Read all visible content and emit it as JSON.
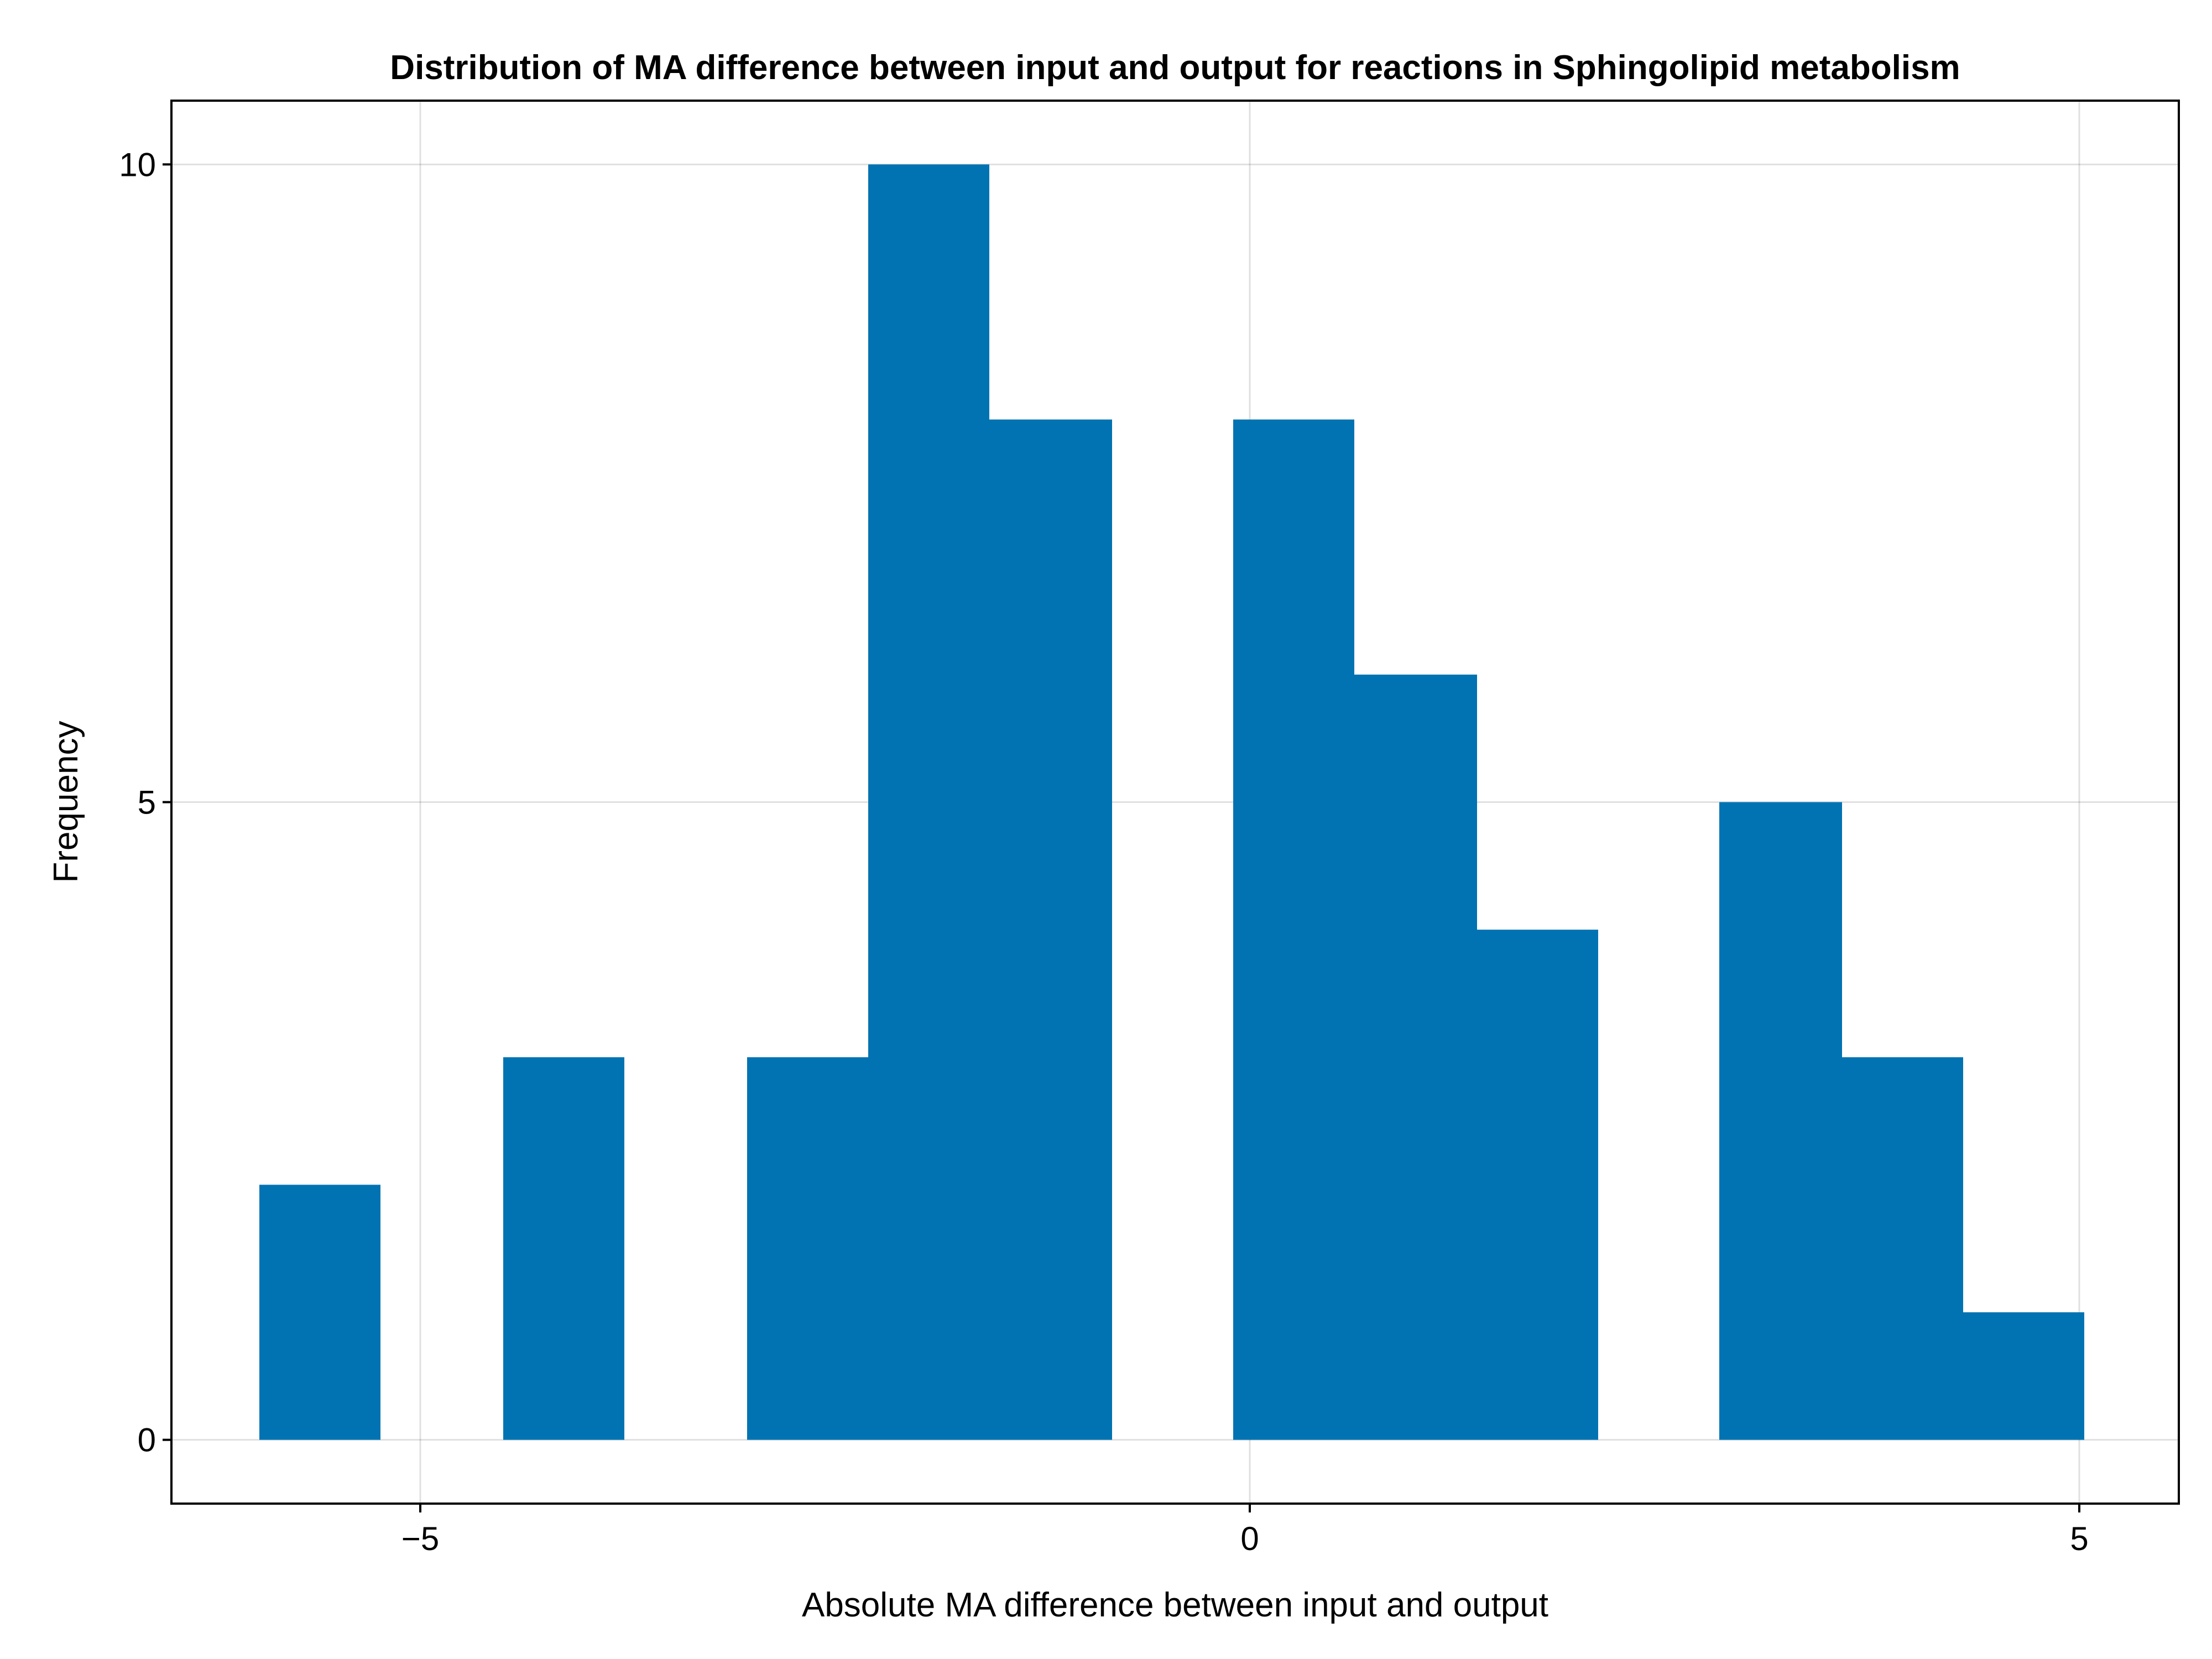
{
  "chart_data": {
    "type": "bar",
    "title": "Distribution of MA difference between input and output for reactions in Sphingolipid metabolism",
    "xlabel": "Absolute MA difference between input and output",
    "ylabel": "Frequency",
    "bar_color": "#0173b2",
    "grid": true,
    "legend": "none",
    "xlim": [
      -6.5,
      5.6
    ],
    "ylim": [
      -0.5,
      10.5
    ],
    "xticks": [
      -5,
      0,
      5
    ],
    "xtick_labels": [
      "−5",
      "0",
      "5"
    ],
    "yticks": [
      0,
      5,
      10
    ],
    "ytick_labels": [
      "0",
      "5",
      "10"
    ],
    "bins": [
      {
        "x0": -5.97,
        "x1": -5.24,
        "count": 2
      },
      {
        "x0": -5.24,
        "x1": -4.5,
        "count": 0
      },
      {
        "x0": -4.5,
        "x1": -3.77,
        "count": 3
      },
      {
        "x0": -3.77,
        "x1": -3.03,
        "count": 0
      },
      {
        "x0": -3.03,
        "x1": -2.3,
        "count": 3
      },
      {
        "x0": -2.3,
        "x1": -1.57,
        "count": 10
      },
      {
        "x0": -1.57,
        "x1": -0.83,
        "count": 8
      },
      {
        "x0": -0.83,
        "x1": -0.1,
        "count": 0
      },
      {
        "x0": -0.1,
        "x1": 0.63,
        "count": 8
      },
      {
        "x0": 0.63,
        "x1": 1.37,
        "count": 6
      },
      {
        "x0": 1.37,
        "x1": 2.1,
        "count": 4
      },
      {
        "x0": 2.1,
        "x1": 2.83,
        "count": 0
      },
      {
        "x0": 2.83,
        "x1": 3.57,
        "count": 5
      },
      {
        "x0": 3.57,
        "x1": 4.3,
        "count": 3
      },
      {
        "x0": 4.3,
        "x1": 5.03,
        "count": 1
      }
    ]
  }
}
